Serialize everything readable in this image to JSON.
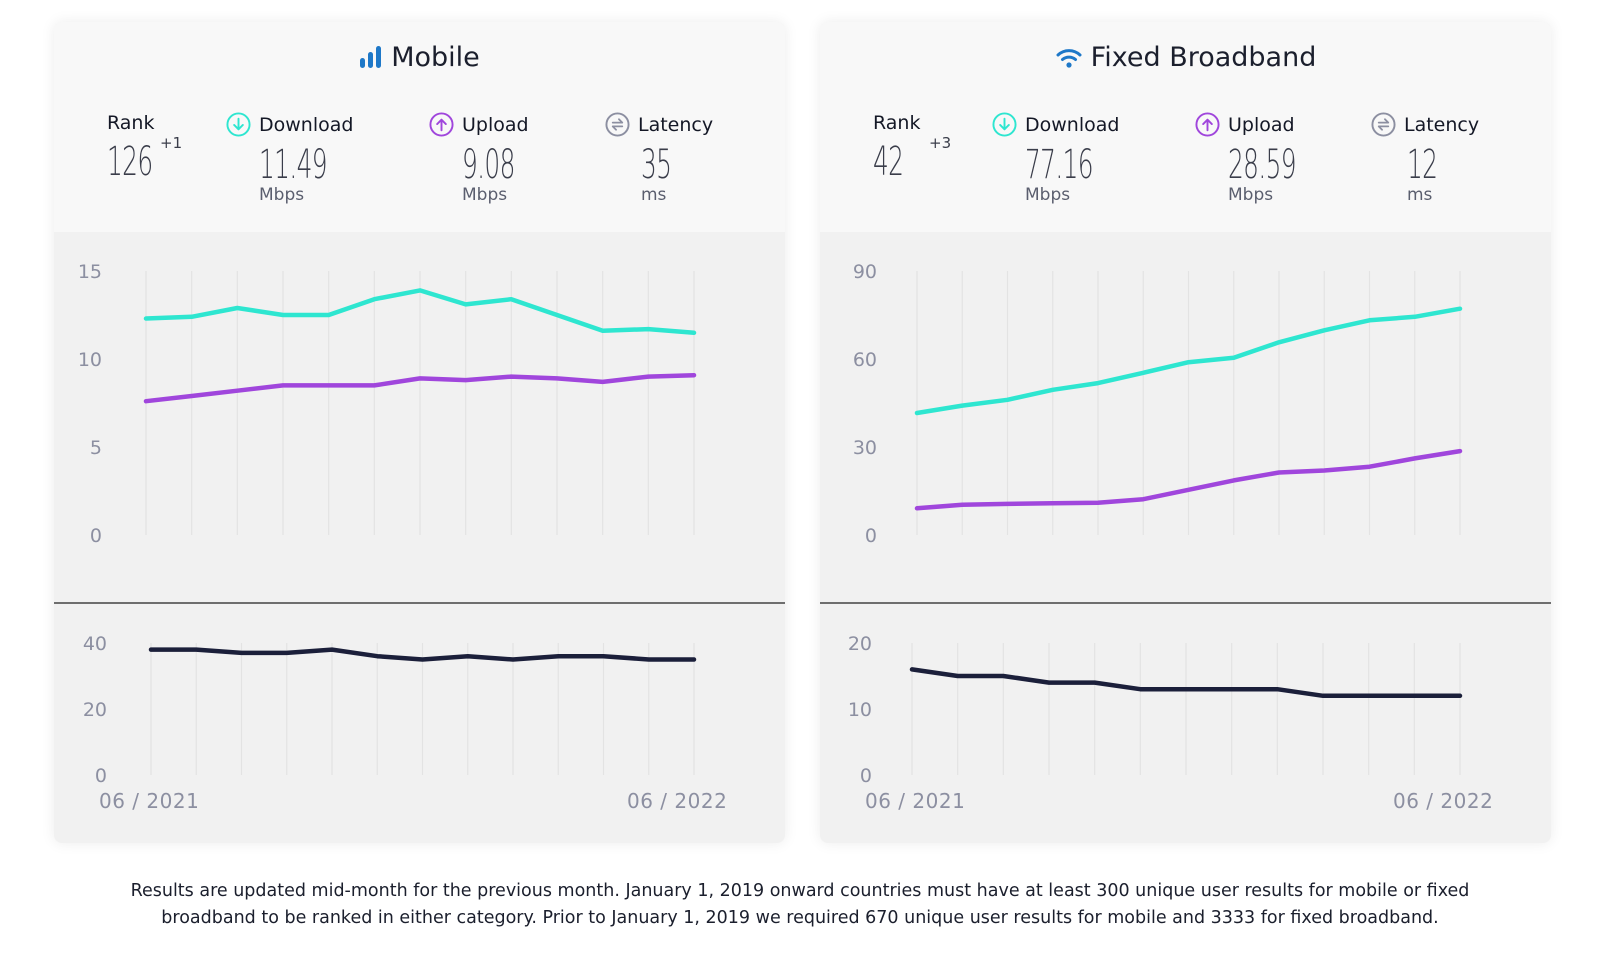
{
  "colors": {
    "download": "#2ee6d0",
    "upload": "#a046dc",
    "latency": "#1b1f3a",
    "title_icon": "#1e78c8",
    "latency_icon": "#8c8fa1",
    "gridline": "#e3e3e3"
  },
  "cards": [
    {
      "id": "mobile",
      "title": "Mobile",
      "title_icon": "signal-bars-icon",
      "rank": {
        "label": "Rank",
        "value": "126",
        "delta": "+1"
      },
      "download": {
        "label": "Download",
        "value": "11.49",
        "unit": "Mbps",
        "icon": "download-arrow-icon"
      },
      "upload": {
        "label": "Upload",
        "value": "9.08",
        "unit": "Mbps",
        "icon": "upload-arrow-icon"
      },
      "latency": {
        "label": "Latency",
        "value": "35",
        "unit": "ms",
        "icon": "latency-arrows-icon"
      },
      "date_start": "06 / 2021",
      "date_end": "06 / 2022"
    },
    {
      "id": "fixed",
      "title": "Fixed Broadband",
      "title_icon": "wifi-icon",
      "rank": {
        "label": "Rank",
        "value": "42",
        "delta": "+3"
      },
      "download": {
        "label": "Download",
        "value": "77.16",
        "unit": "Mbps",
        "icon": "download-arrow-icon"
      },
      "upload": {
        "label": "Upload",
        "value": "28.59",
        "unit": "Mbps",
        "icon": "upload-arrow-icon"
      },
      "latency": {
        "label": "Latency",
        "value": "12",
        "unit": "ms",
        "icon": "latency-arrows-icon"
      },
      "date_start": "06 / 2021",
      "date_end": "06 / 2022"
    }
  ],
  "chart_data": [
    {
      "type": "line",
      "title": "Mobile speed",
      "x": [
        "06/2021",
        "07/2021",
        "08/2021",
        "09/2021",
        "10/2021",
        "11/2021",
        "12/2021",
        "01/2022",
        "02/2022",
        "03/2022",
        "04/2022",
        "05/2022",
        "06/2022"
      ],
      "xlabel_start": "06 / 2021",
      "xlabel_end": "06 / 2022",
      "ylabel": "Mbps",
      "ylim": [
        0,
        15
      ],
      "yticks": [
        0,
        5,
        10,
        15
      ],
      "grid": "vertical",
      "series": [
        {
          "name": "Download",
          "color": "#2ee6d0",
          "values": [
            12.3,
            12.4,
            12.9,
            12.5,
            12.5,
            13.4,
            13.9,
            13.1,
            13.4,
            12.5,
            11.6,
            11.7,
            11.49
          ]
        },
        {
          "name": "Upload",
          "color": "#a046dc",
          "values": [
            7.6,
            7.9,
            8.2,
            8.5,
            8.5,
            8.5,
            8.9,
            8.8,
            9.0,
            8.9,
            8.7,
            9.0,
            9.08
          ]
        }
      ]
    },
    {
      "type": "line",
      "title": "Mobile latency",
      "x": [
        "06/2021",
        "07/2021",
        "08/2021",
        "09/2021",
        "10/2021",
        "11/2021",
        "12/2021",
        "01/2022",
        "02/2022",
        "03/2022",
        "04/2022",
        "05/2022",
        "06/2022"
      ],
      "ylabel": "ms",
      "ylim": [
        0,
        40
      ],
      "yticks": [
        0,
        20,
        40
      ],
      "grid": "vertical",
      "series": [
        {
          "name": "Latency",
          "color": "#1b1f3a",
          "values": [
            38,
            38,
            37,
            37,
            38,
            36,
            35,
            36,
            35,
            36,
            36,
            35,
            35
          ]
        }
      ]
    },
    {
      "type": "line",
      "title": "Fixed Broadband speed",
      "x": [
        "06/2021",
        "07/2021",
        "08/2021",
        "09/2021",
        "10/2021",
        "11/2021",
        "12/2021",
        "01/2022",
        "02/2022",
        "03/2022",
        "04/2022",
        "05/2022",
        "06/2022"
      ],
      "xlabel_start": "06 / 2021",
      "xlabel_end": "06 / 2022",
      "ylabel": "Mbps",
      "ylim": [
        0,
        90
      ],
      "yticks": [
        0,
        30,
        60,
        90
      ],
      "grid": "vertical",
      "series": [
        {
          "name": "Download",
          "color": "#2ee6d0",
          "values": [
            41.6,
            44.1,
            46.1,
            49.5,
            51.8,
            55.3,
            58.9,
            60.4,
            65.7,
            69.8,
            73.2,
            74.4,
            77.16
          ]
        },
        {
          "name": "Upload",
          "color": "#a046dc",
          "values": [
            9.1,
            10.3,
            10.6,
            10.8,
            11.0,
            12.2,
            15.4,
            18.6,
            21.3,
            22.0,
            23.3,
            26.1,
            28.59
          ]
        }
      ]
    },
    {
      "type": "line",
      "title": "Fixed Broadband latency",
      "x": [
        "06/2021",
        "07/2021",
        "08/2021",
        "09/2021",
        "10/2021",
        "11/2021",
        "12/2021",
        "01/2022",
        "02/2022",
        "03/2022",
        "04/2022",
        "05/2022",
        "06/2022"
      ],
      "ylabel": "ms",
      "ylim": [
        0,
        20
      ],
      "yticks": [
        0,
        10,
        20
      ],
      "grid": "vertical",
      "series": [
        {
          "name": "Latency",
          "color": "#1b1f3a",
          "values": [
            16,
            15,
            15,
            14,
            14,
            13,
            13,
            13,
            13,
            12,
            12,
            12,
            12
          ]
        }
      ]
    }
  ],
  "footer": {
    "line1": "Results are updated mid-month for the previous month. January 1, 2019 onward countries must have at least 300 unique user results for mobile or fixed",
    "line2": "broadband to be ranked in either category. Prior to January 1, 2019 we required 670 unique user results for mobile and 3333 for fixed broadband."
  }
}
